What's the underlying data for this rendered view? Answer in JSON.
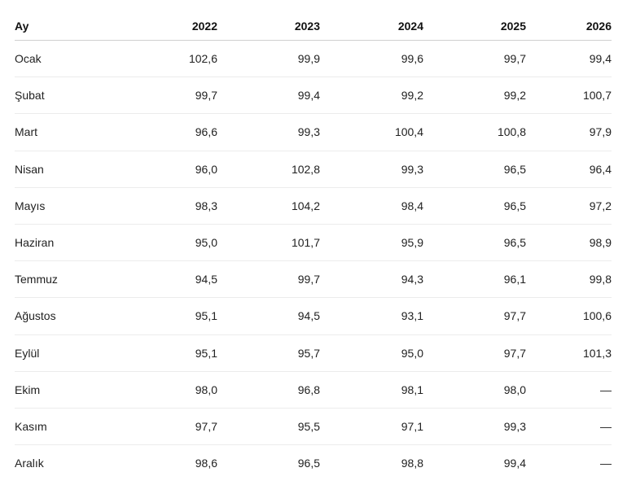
{
  "table": {
    "header": [
      "Ay",
      "2022",
      "2023",
      "2024",
      "2025",
      "2026"
    ],
    "rows": [
      [
        "Ocak",
        "102,6",
        "99,9",
        "99,6",
        "99,7",
        "99,4"
      ],
      [
        "Şubat",
        "99,7",
        "99,4",
        "99,2",
        "99,2",
        "100,7"
      ],
      [
        "Mart",
        "96,6",
        "99,3",
        "100,4",
        "100,8",
        "97,9"
      ],
      [
        "Nisan",
        "96,0",
        "102,8",
        "99,3",
        "96,5",
        "96,4"
      ],
      [
        "Mayıs",
        "98,3",
        "104,2",
        "98,4",
        "96,5",
        "97,2"
      ],
      [
        "Haziran",
        "95,0",
        "101,7",
        "95,9",
        "96,5",
        "98,9"
      ],
      [
        "Temmuz",
        "94,5",
        "99,7",
        "94,3",
        "96,1",
        "99,8"
      ],
      [
        "Ağustos",
        "95,1",
        "94,5",
        "93,1",
        "97,7",
        "100,6"
      ],
      [
        "Eylül",
        "95,1",
        "95,7",
        "95,0",
        "97,7",
        "101,3"
      ],
      [
        "Ekim",
        "98,0",
        "96,8",
        "98,1",
        "98,0",
        "—"
      ],
      [
        "Kasım",
        "97,7",
        "95,5",
        "97,1",
        "99,3",
        "—"
      ],
      [
        "Aralık",
        "98,6",
        "96,5",
        "98,8",
        "99,4",
        "—"
      ]
    ]
  }
}
